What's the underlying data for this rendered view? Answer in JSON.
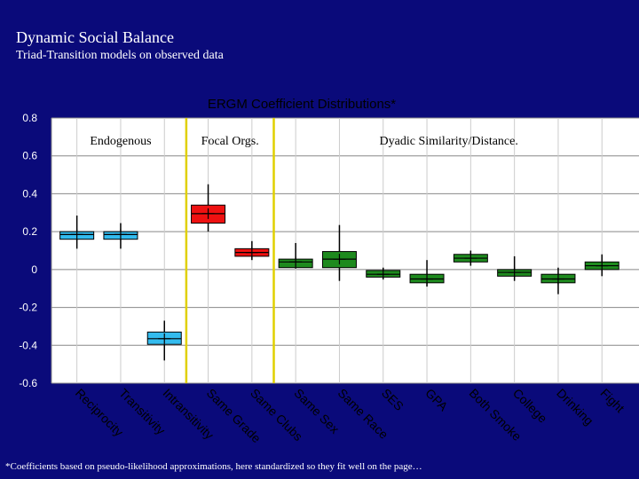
{
  "slide": {
    "title": "Dynamic Social Balance",
    "subtitle": "Triad-Transition models on observed data",
    "footnote": "*Coefficients based on pseudo-likelihood approximations, here standardized so they fit well on the page…"
  },
  "colors": {
    "background": "#0a0a7a",
    "plot_area": "#ffffff",
    "grid": "#888888",
    "divider": "#e0d000",
    "endogenous": "#33bbee",
    "focal": "#ee1111",
    "dyadic": "#1e8a1e"
  },
  "chart_data": {
    "type": "boxplot",
    "title": "ERGM Coefficient Distributions*",
    "ylim": [
      -0.6,
      0.8
    ],
    "yticks": [
      -0.6,
      -0.4,
      -0.2,
      0,
      0.2,
      0.4,
      0.6,
      0.8
    ],
    "ytick_labels": [
      "-0.6",
      "-0.4",
      "-0.2",
      "0",
      "0.2",
      "0.4",
      "0.6",
      "0.8"
    ],
    "grid": true,
    "groups": [
      {
        "label": "Endogenous",
        "start": 0,
        "end": 3
      },
      {
        "label": "Focal Orgs.",
        "start": 3,
        "end": 5
      },
      {
        "label": "Dyadic Similarity/Distance.",
        "start": 5,
        "end": 13
      }
    ],
    "categories": [
      "Reciprocity",
      "Transitivity",
      "Intransitivity",
      "Same Grade",
      "Same Clubs",
      "Same Sex",
      "Same Race",
      "SES",
      "GPA",
      "Both Smoke",
      "College",
      "Drinking",
      "Fight"
    ],
    "boxes": [
      {
        "group": "endogenous",
        "min": 0.11,
        "q1": 0.16,
        "median": 0.185,
        "q3": 0.2,
        "max": 0.285
      },
      {
        "group": "endogenous",
        "min": 0.11,
        "q1": 0.16,
        "median": 0.185,
        "q3": 0.2,
        "max": 0.245
      },
      {
        "group": "endogenous",
        "min": -0.48,
        "q1": -0.395,
        "median": -0.365,
        "q3": -0.33,
        "max": -0.27
      },
      {
        "group": "focal",
        "min": 0.2,
        "q1": 0.245,
        "median": 0.295,
        "q3": 0.34,
        "max": 0.45
      },
      {
        "group": "focal",
        "min": 0.05,
        "q1": 0.07,
        "median": 0.09,
        "q3": 0.11,
        "max": 0.15
      },
      {
        "group": "dyadic",
        "min": 0.005,
        "q1": 0.01,
        "median": 0.04,
        "q3": 0.055,
        "max": 0.14
      },
      {
        "group": "dyadic",
        "min": -0.06,
        "q1": 0.01,
        "median": 0.055,
        "q3": 0.095,
        "max": 0.235
      },
      {
        "group": "dyadic",
        "min": -0.05,
        "q1": -0.04,
        "median": -0.025,
        "q3": -0.005,
        "max": 0.01
      },
      {
        "group": "dyadic",
        "min": -0.09,
        "q1": -0.07,
        "median": -0.05,
        "q3": -0.025,
        "max": 0.05
      },
      {
        "group": "dyadic",
        "min": 0.02,
        "q1": 0.04,
        "median": 0.06,
        "q3": 0.08,
        "max": 0.1
      },
      {
        "group": "dyadic",
        "min": -0.06,
        "q1": -0.035,
        "median": -0.015,
        "q3": 0.0,
        "max": 0.07
      },
      {
        "group": "dyadic",
        "min": -0.13,
        "q1": -0.07,
        "median": -0.05,
        "q3": -0.025,
        "max": 0.01
      },
      {
        "group": "dyadic",
        "min": -0.035,
        "q1": 0.0,
        "median": 0.02,
        "q3": 0.04,
        "max": 0.08
      }
    ]
  }
}
